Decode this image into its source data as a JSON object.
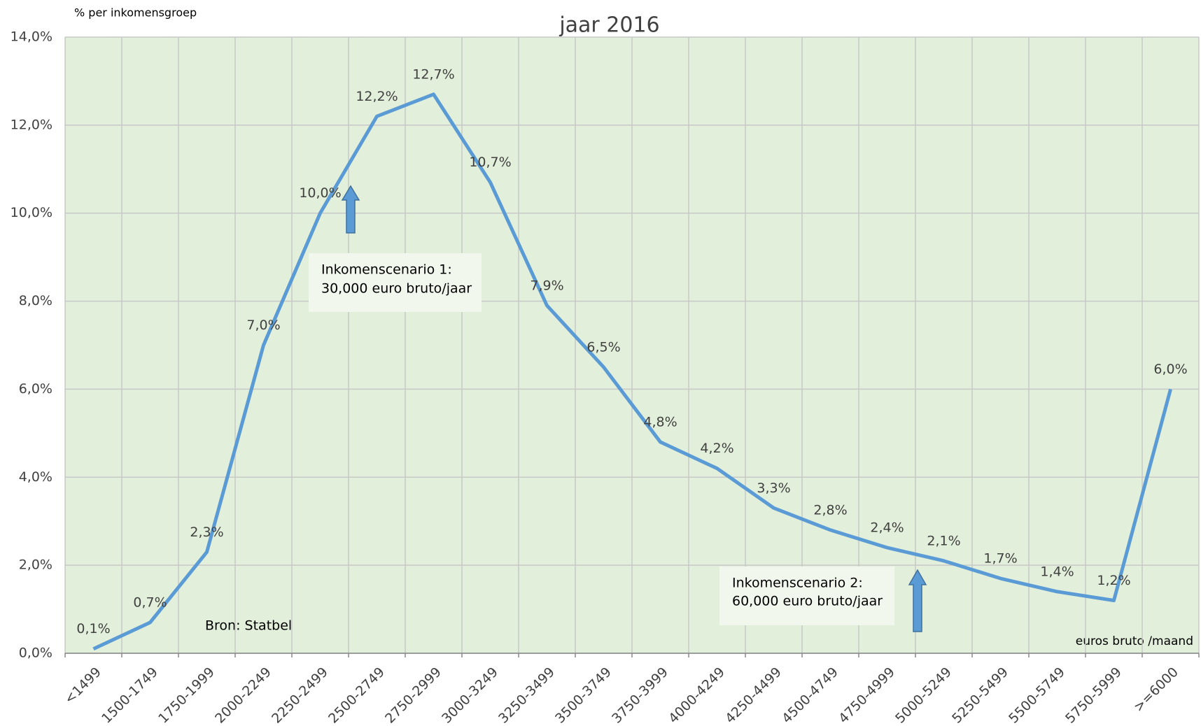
{
  "chart_data": {
    "type": "line",
    "subtitle": "jaar 2016",
    "y_label": "% per inkomensgroep",
    "x_label": "euros bruto /maand",
    "source": "Bron: Statbel",
    "annotations": [
      {
        "lines": [
          "Inkomenscenario 1:",
          "30,000 euro bruto/jaar"
        ]
      },
      {
        "lines": [
          "Inkomenscenario 2:",
          "60,000 euro bruto/jaar"
        ]
      }
    ],
    "categories": [
      "<1499",
      "1500-1749",
      "1750-1999",
      "2000-2249",
      "2250-2499",
      "2500-2749",
      "2750-2999",
      "3000-3249",
      "3250-3499",
      "3500-3749",
      "3750-3999",
      "4000-4249",
      "4250-4499",
      "4500-4749",
      "4750-4999",
      "5000-5249",
      "5250-5499",
      "5500-5749",
      "5750-5999",
      ">=6000"
    ],
    "values": [
      0.1,
      0.7,
      2.3,
      7.0,
      10.0,
      12.2,
      12.7,
      10.7,
      7.9,
      6.5,
      4.8,
      4.2,
      3.3,
      2.8,
      2.4,
      2.1,
      1.7,
      1.4,
      1.2,
      6.0
    ],
    "value_labels": [
      "0,1%",
      "0,7%",
      "2,3%",
      "7,0%",
      "10,0%",
      "12,2%",
      "12,7%",
      "10,7%",
      "7,9%",
      "6,5%",
      "4,8%",
      "4,2%",
      "3,3%",
      "2,8%",
      "2,4%",
      "2,1%",
      "1,7%",
      "1,4%",
      "1,2%",
      "6,0%"
    ],
    "color": "#5b9bd5",
    "ylim": [
      0,
      14
    ],
    "yticks": [
      {
        "value": 0,
        "label": "0,0%"
      },
      {
        "value": 2,
        "label": "2,0%"
      },
      {
        "value": 4,
        "label": "4,0%"
      },
      {
        "value": 6,
        "label": "6,0%"
      },
      {
        "value": 8,
        "label": "8,0%"
      },
      {
        "value": 10,
        "label": "10,0%"
      },
      {
        "value": 12,
        "label": "12,0%"
      },
      {
        "value": 14,
        "label": "14,0%"
      }
    ],
    "grid": true
  }
}
